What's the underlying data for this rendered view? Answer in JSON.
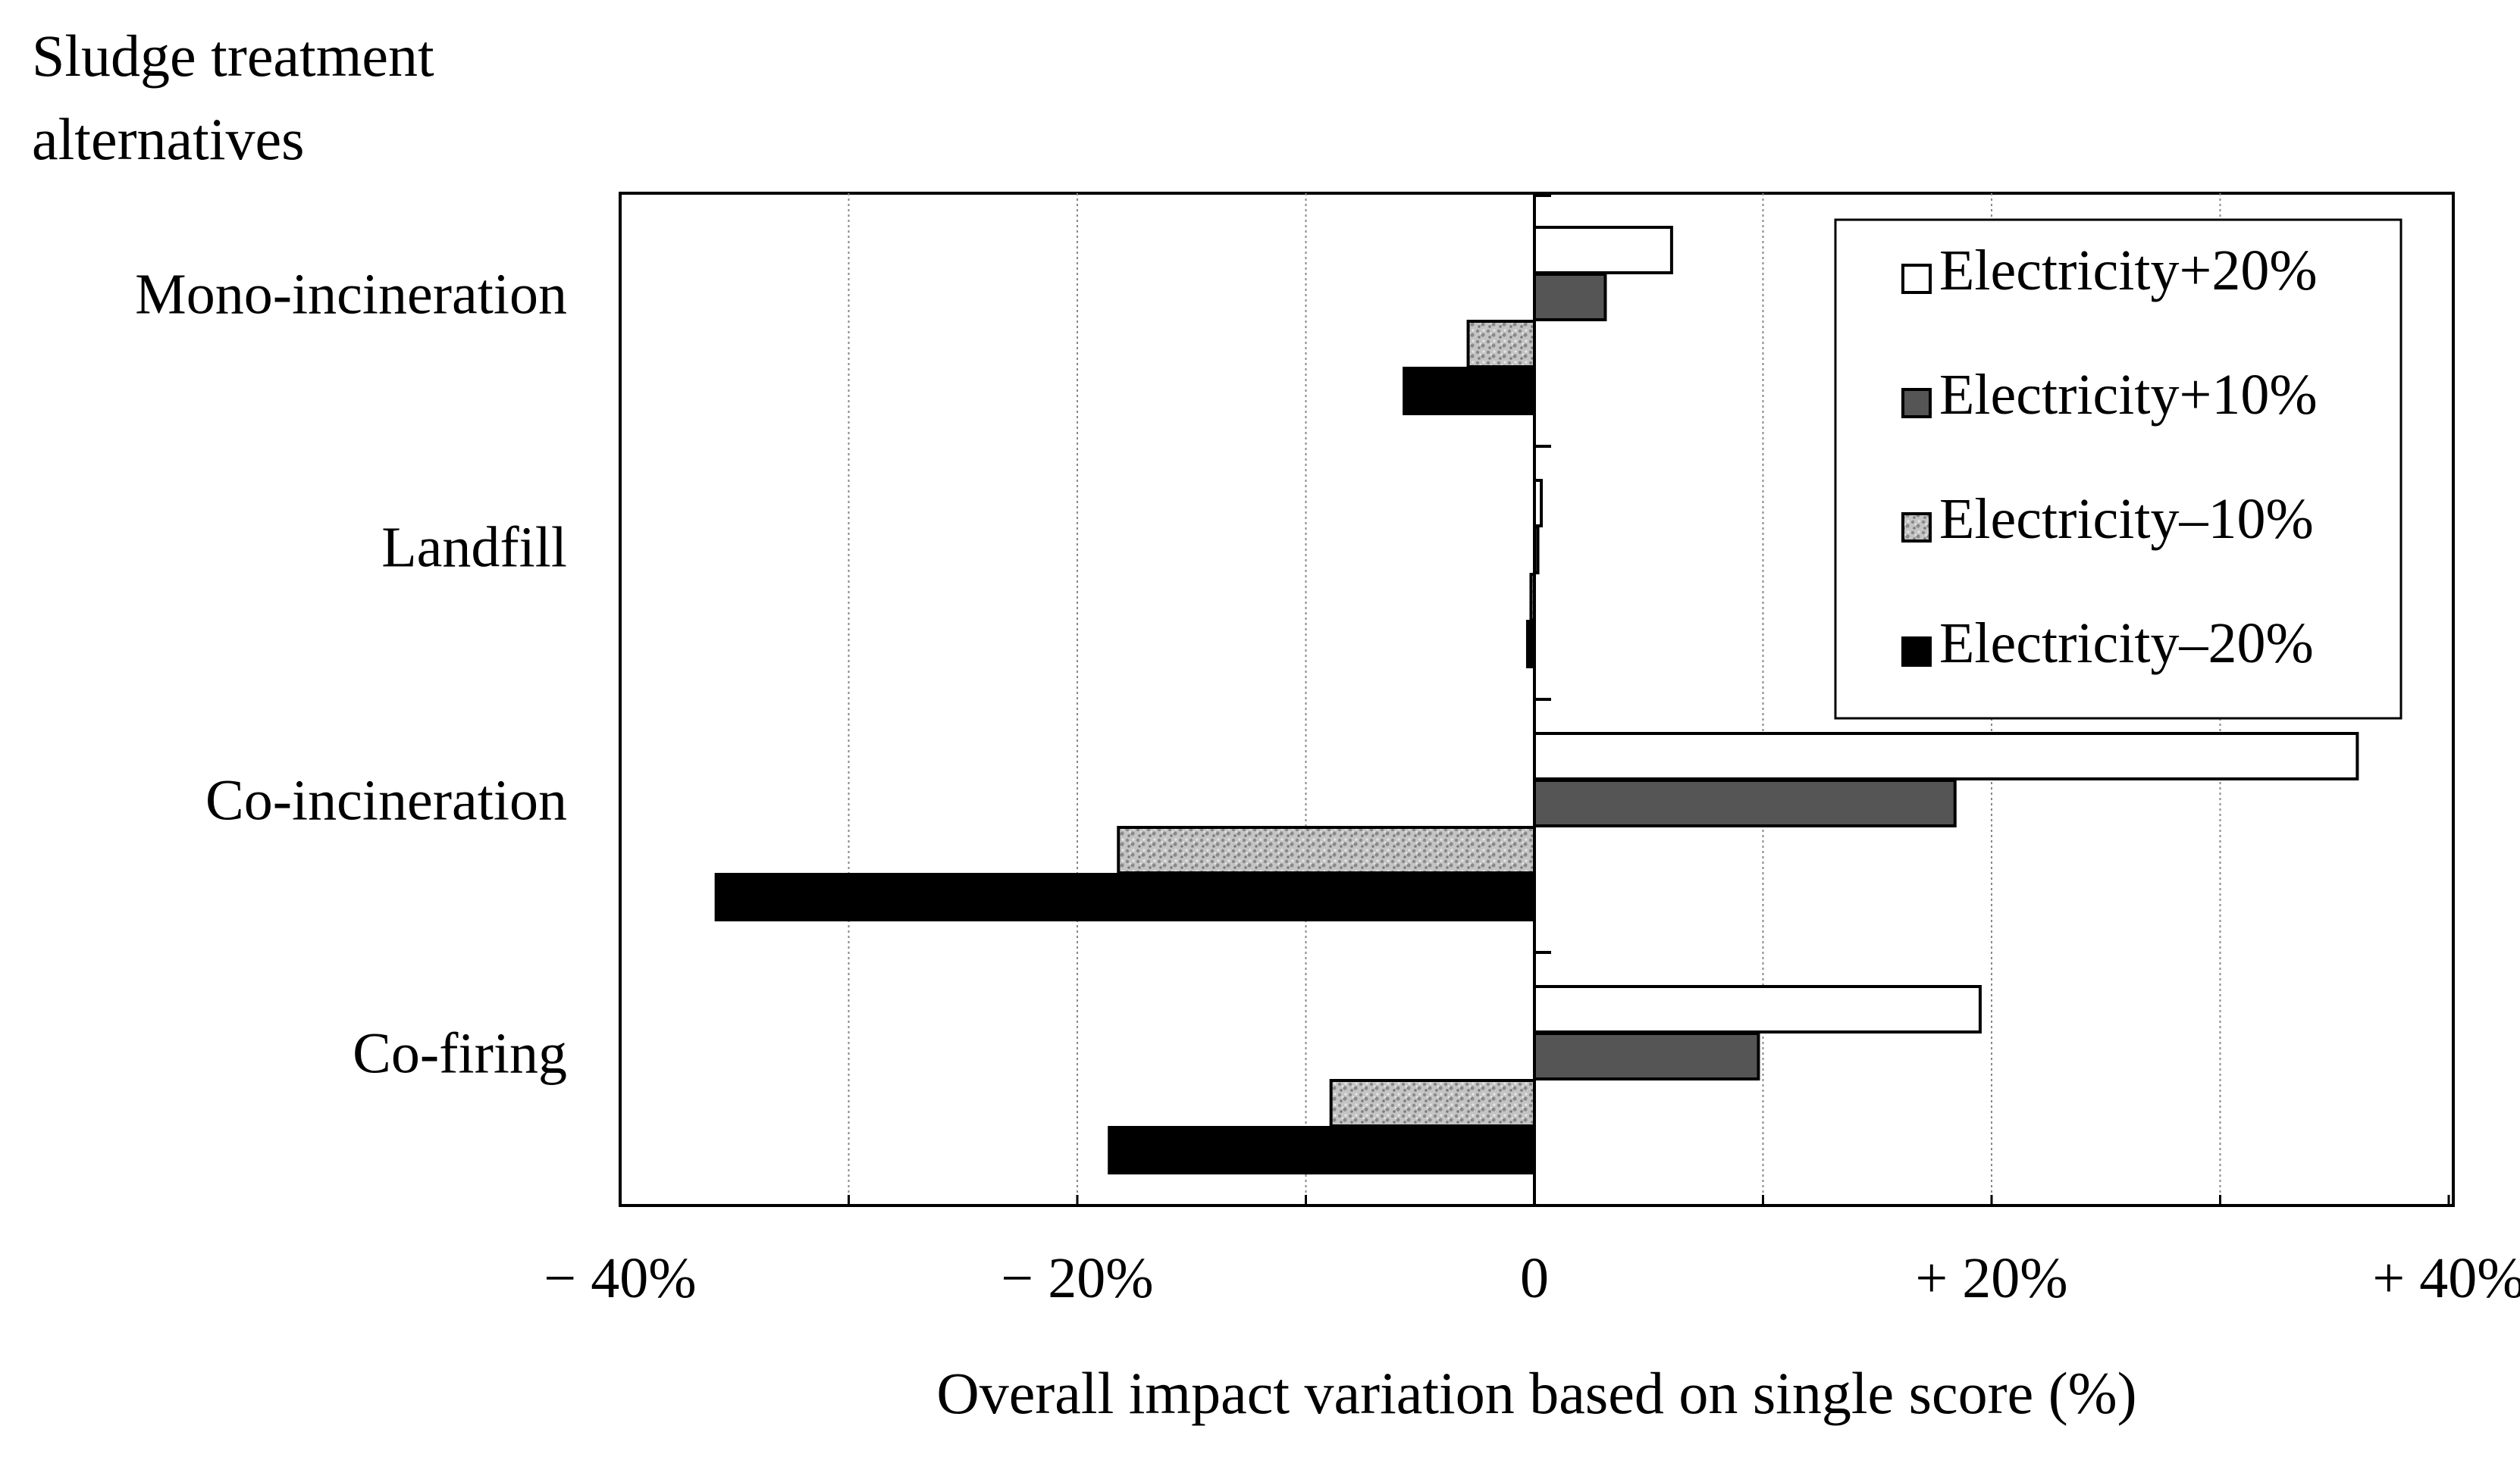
{
  "chart_data": {
    "type": "bar",
    "orientation": "horizontal",
    "y_title_lines": [
      "Sludge treatment",
      "alternatives"
    ],
    "xlabel": "Overall impact variation  based on single score (%)",
    "xlim": [
      -40,
      40
    ],
    "x_ticks": [
      -40,
      -20,
      0,
      20,
      40
    ],
    "x_tick_labels": [
      "− 40%",
      "− 20%",
      "0",
      "+ 20%",
      "+ 40%"
    ],
    "grid": "vertical, dotted, every 10%",
    "categories": [
      "Mono-incineration",
      "Landfill",
      "Co-incineration",
      "Co-firing"
    ],
    "series": [
      {
        "name": "Electricity+20%",
        "pattern": "white",
        "values": [
          6.0,
          0.3,
          36.0,
          19.5
        ]
      },
      {
        "name": "Electricity+10%",
        "pattern": "darkgray",
        "values": [
          3.1,
          0.15,
          18.4,
          9.8
        ]
      },
      {
        "name": "Electricity–10%",
        "pattern": "speckled",
        "values": [
          -2.9,
          -0.15,
          -18.2,
          -8.9
        ]
      },
      {
        "name": "Electricity–20%",
        "pattern": "black",
        "values": [
          -5.7,
          -0.3,
          -35.8,
          -18.6
        ]
      }
    ],
    "legend_position": "top-right"
  },
  "colors": {
    "white_fill": "#ffffff",
    "dark_fill": "#555555",
    "speckle_base": "#c4c4c4",
    "speckle_dot": "#8a8a8a",
    "black_fill": "#000000"
  }
}
